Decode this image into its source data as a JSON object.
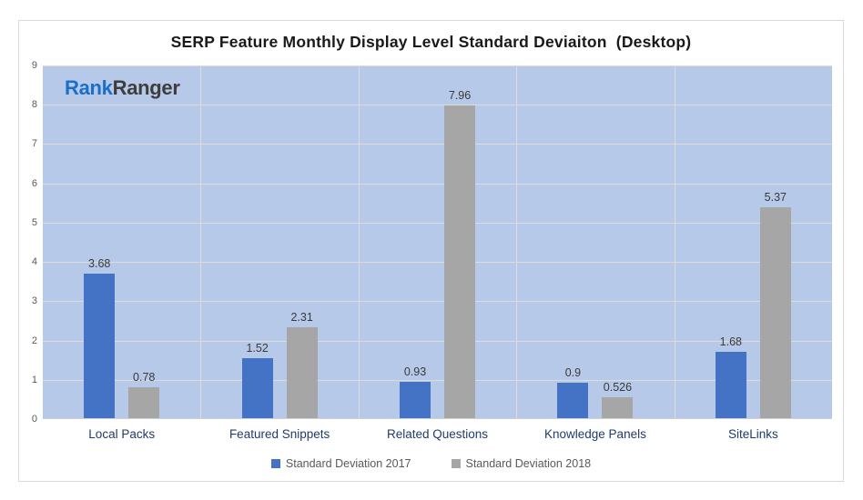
{
  "logo": {
    "part1": "Rank",
    "part2": "Ranger"
  },
  "colors": {
    "series_2017": "#4472c4",
    "series_2018": "#a6a6a6",
    "plot_background": "#b7c9e8",
    "gridline": "#dedcd8",
    "category_label": "#1f3c69",
    "value_label": "#3a3a3a",
    "axis_label": "#595959",
    "logo_blue": "#1b6fc8",
    "logo_dark": "#3d3d3d"
  },
  "chart_data": {
    "type": "bar",
    "title": "SERP Feature Monthly Display Level Standard Deviaiton  (Desktop)",
    "categories": [
      "Local Packs",
      "Featured Snippets",
      "Related Questions",
      "Knowledge Panels",
      "SiteLinks"
    ],
    "series": [
      {
        "name": "Standard Deviation 2017",
        "color": "#4472c4",
        "values": [
          3.68,
          1.52,
          0.93,
          0.9,
          1.68
        ]
      },
      {
        "name": "Standard Deviation 2018",
        "color": "#a6a6a6",
        "values": [
          0.78,
          2.31,
          7.96,
          0.526,
          5.37
        ]
      }
    ],
    "xlabel": "",
    "ylabel": "",
    "ylim": [
      0,
      9
    ],
    "yticks": [
      0,
      1,
      2,
      3,
      4,
      5,
      6,
      7,
      8,
      9
    ],
    "grid": true,
    "data_labels": true,
    "legend_position": "bottom"
  }
}
